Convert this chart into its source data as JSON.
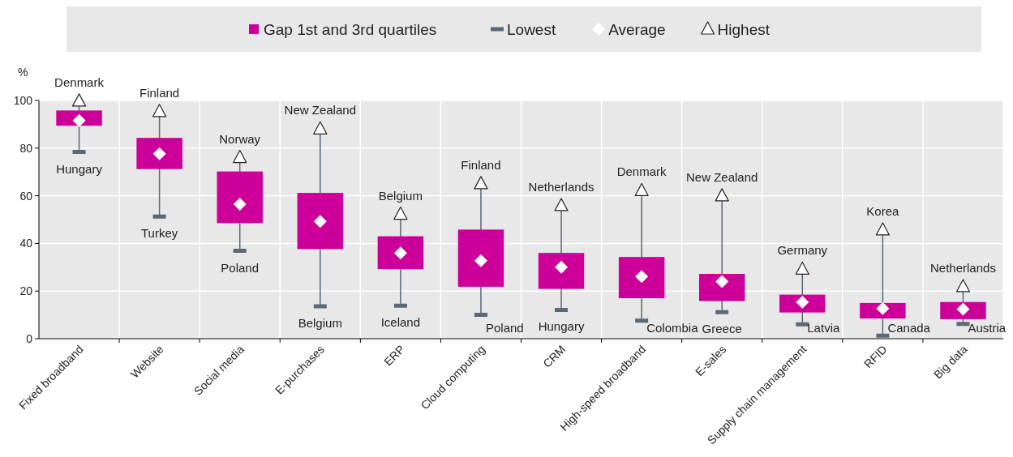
{
  "chart_data": {
    "type": "bar",
    "ylabel": "%",
    "categories": [
      "Fixed broadband",
      "Website",
      "Social media",
      "E-purchases",
      "ERP",
      "Cloud computing",
      "CRM",
      "High-speed broadband",
      "E-sales",
      "Supply chain management",
      "RFID",
      "Big data"
    ],
    "ylim": [
      0,
      100
    ],
    "yticks": [
      0,
      20,
      40,
      60,
      80,
      100
    ],
    "grid": true,
    "legend": "top",
    "series": [
      {
        "name": "Gap 1st and 3rd quartiles",
        "color": "#cc0099",
        "base": [
          89.4,
          71.2,
          48.5,
          37.6,
          29.2,
          21.8,
          20.9,
          17,
          15.8,
          11,
          8.5,
          8.2
        ],
        "values": [
          6.4,
          13.1,
          21.7,
          23.6,
          13.8,
          24,
          15.1,
          17.3,
          11.4,
          7.5,
          6.5,
          7.2
        ]
      },
      {
        "name": "Lowest",
        "type": "scatter",
        "color": "#5a6878",
        "values": [
          78.4,
          51.3,
          36.9,
          13.6,
          13.9,
          10,
          12.1,
          7.6,
          11.1,
          6,
          1.3,
          6.2
        ]
      },
      {
        "name": "Average",
        "type": "scatter",
        "color": "#ffffff",
        "marker": "diamond",
        "values": [
          91.6,
          77.6,
          56.5,
          49.2,
          36,
          32.7,
          30,
          26.1,
          24,
          15.3,
          12.7,
          12.4
        ]
      },
      {
        "name": "Highest",
        "type": "scatter",
        "color": "#ffffff",
        "marker": "triangle",
        "values": [
          99.7,
          95.3,
          76,
          88,
          52.2,
          65,
          55.8,
          62.1,
          59.9,
          29.1,
          45.6,
          21.8
        ]
      }
    ],
    "annotations": [
      {
        "text": "Denmark",
        "x": "Fixed broadband",
        "y": 99.7
      },
      {
        "text": "Hungary",
        "x": "Fixed broadband",
        "y": 78.4
      },
      {
        "text": "Finland",
        "x": "Website",
        "y": 95.3
      },
      {
        "text": "Turkey",
        "x": "Website",
        "y": 51.3
      },
      {
        "text": "Norway",
        "x": "Social media",
        "y": 76
      },
      {
        "text": "Poland",
        "x": "Social media",
        "y": 36.9
      },
      {
        "text": "New Zealand",
        "x": "E-purchases",
        "y": 88
      },
      {
        "text": "Belgium",
        "x": "E-purchases",
        "y": 13.6
      },
      {
        "text": "Belgium",
        "x": "ERP",
        "y": 52.2
      },
      {
        "text": "Iceland",
        "x": "ERP",
        "y": 13.9
      },
      {
        "text": "Finland",
        "x": "Cloud computing",
        "y": 65
      },
      {
        "text": "Poland",
        "x": "Cloud computing",
        "y": 10
      },
      {
        "text": "Netherlands",
        "x": "CRM",
        "y": 55.8
      },
      {
        "text": "Hungary",
        "x": "CRM",
        "y": 12.1
      },
      {
        "text": "Denmark",
        "x": "High-speed broadband",
        "y": 62.1
      },
      {
        "text": "Colombia",
        "x": "High-speed broadband",
        "y": 7.6
      },
      {
        "text": "New Zealand",
        "x": "E-sales",
        "y": 59.9
      },
      {
        "text": "Greece",
        "x": "E-sales",
        "y": 11.1
      },
      {
        "text": "Germany",
        "x": "Supply chain management",
        "y": 29.1
      },
      {
        "text": "Latvia",
        "x": "Supply chain management",
        "y": 6
      },
      {
        "text": "Korea",
        "x": "RFID",
        "y": 45.6
      },
      {
        "text": "Canada",
        "x": "RFID",
        "y": 1.3
      },
      {
        "text": "Netherlands",
        "x": "Big data",
        "y": 21.8
      },
      {
        "text": "Austria",
        "x": "Big data",
        "y": 6.2
      }
    ]
  }
}
